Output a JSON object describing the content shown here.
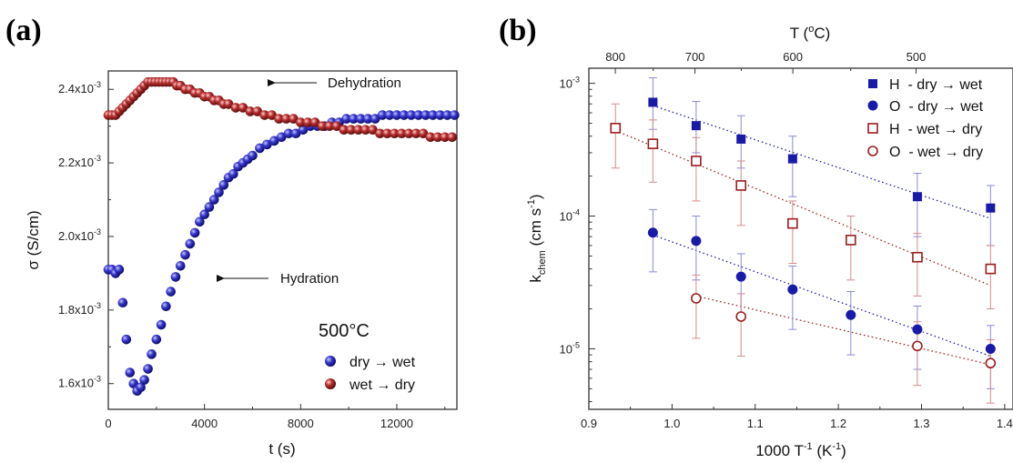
{
  "panel_labels": [
    "(a)",
    "(b)"
  ],
  "chart_data": [
    {
      "type": "scatter",
      "panel": "(a)",
      "xlabel": "t (s)",
      "ylabel": "σ (S/cm)",
      "xlim": [
        0,
        14500
      ],
      "ylim": [
        0.00153,
        0.00245
      ],
      "xticks": [
        "0",
        "4000",
        "8000",
        "12000"
      ],
      "yticks": [
        {
          "base": "1.6x10",
          "exp": "-3"
        },
        {
          "base": "1.8x10",
          "exp": "-3"
        },
        {
          "base": "2.0x10",
          "exp": "-3"
        },
        {
          "base": "2.2x10",
          "exp": "-3"
        },
        {
          "base": "2.4x10",
          "exp": "-3"
        }
      ],
      "legend_title": "500°C",
      "legend_position": "bottom-right",
      "annotations": [
        "Dehydration",
        "Hydration"
      ],
      "series": [
        {
          "name": "dry → wet",
          "color": "#1a1aa8",
          "x": [
            0,
            150,
            300,
            450,
            600,
            750,
            900,
            1050,
            1200,
            1350,
            1500,
            1650,
            1800,
            2000,
            2200,
            2400,
            2600,
            2800,
            3000,
            3200,
            3400,
            3600,
            3800,
            4000,
            4200,
            4400,
            4600,
            4800,
            5000,
            5200,
            5400,
            5600,
            5800,
            6000,
            6300,
            6600,
            6900,
            7200,
            7500,
            7800,
            8100,
            8400,
            8700,
            9000,
            9300,
            9600,
            9900,
            10200,
            10500,
            10800,
            11100,
            11400,
            11700,
            12000,
            12300,
            12600,
            12900,
            13200,
            13500,
            13800,
            14100,
            14400
          ],
          "y": [
            0.00191,
            0.00191,
            0.0019,
            0.00191,
            0.00182,
            0.00172,
            0.00163,
            0.0016,
            0.00158,
            0.00159,
            0.00161,
            0.00164,
            0.00168,
            0.00172,
            0.00176,
            0.00181,
            0.00185,
            0.00189,
            0.00192,
            0.00195,
            0.00198,
            0.00201,
            0.00204,
            0.00206,
            0.00208,
            0.0021,
            0.00212,
            0.00214,
            0.00216,
            0.00217,
            0.00219,
            0.0022,
            0.00221,
            0.00222,
            0.00224,
            0.00225,
            0.00226,
            0.00227,
            0.00228,
            0.00228,
            0.00229,
            0.0023,
            0.0023,
            0.0023,
            0.00231,
            0.00231,
            0.00232,
            0.00232,
            0.00232,
            0.00232,
            0.00232,
            0.00233,
            0.00233,
            0.00233,
            0.00233,
            0.00233,
            0.00233,
            0.00233,
            0.00233,
            0.00233,
            0.00233,
            0.00233
          ]
        },
        {
          "name": "wet → dry",
          "color": "#9b1c1c",
          "x": [
            0,
            150,
            300,
            450,
            600,
            750,
            900,
            1050,
            1200,
            1350,
            1500,
            1650,
            1800,
            1950,
            2100,
            2250,
            2400,
            2550,
            2700,
            2850,
            3000,
            3200,
            3400,
            3600,
            3800,
            4000,
            4200,
            4400,
            4600,
            4800,
            5000,
            5300,
            5600,
            5900,
            6200,
            6500,
            6800,
            7100,
            7400,
            7700,
            8000,
            8300,
            8600,
            8900,
            9200,
            9500,
            9800,
            10100,
            10400,
            10700,
            11000,
            11300,
            11600,
            11900,
            12200,
            12500,
            12800,
            13100,
            13400,
            13700,
            14000,
            14300
          ],
          "y": [
            0.00233,
            0.00233,
            0.00233,
            0.00234,
            0.00235,
            0.00236,
            0.00237,
            0.00238,
            0.00239,
            0.0024,
            0.00241,
            0.00242,
            0.00242,
            0.00242,
            0.00242,
            0.00242,
            0.00242,
            0.00242,
            0.00242,
            0.00241,
            0.00241,
            0.0024,
            0.0024,
            0.00239,
            0.00239,
            0.00238,
            0.00238,
            0.00237,
            0.00237,
            0.00236,
            0.00236,
            0.00235,
            0.00235,
            0.00234,
            0.00234,
            0.00233,
            0.00233,
            0.00232,
            0.00232,
            0.00232,
            0.00231,
            0.00231,
            0.00231,
            0.0023,
            0.0023,
            0.0023,
            0.00229,
            0.00229,
            0.00229,
            0.00229,
            0.00229,
            0.00228,
            0.00228,
            0.00228,
            0.00228,
            0.00228,
            0.00228,
            0.00228,
            0.00227,
            0.00227,
            0.00227,
            0.00227
          ]
        }
      ]
    },
    {
      "type": "scatter",
      "panel": "(b)",
      "xlabel": {
        "base": "1000 T",
        "sup": "-1",
        "unit": " (K",
        "unit_sup": "-1",
        "close": ")"
      },
      "ylabel": {
        "base": "k",
        "sub": "chem",
        "unit": " (cm s",
        "unit_sup": "-1",
        "close": ")"
      },
      "top_axis_label": {
        "base": "T (",
        "sup": "o",
        "rest": "C)"
      },
      "yscale": "log",
      "xlim": [
        0.9,
        1.41
      ],
      "ylim": [
        3.5e-06,
        0.0013
      ],
      "xticks": [
        "0.9",
        "1.0",
        "1.1",
        "1.2",
        "1.3",
        "1.4"
      ],
      "yticks": [
        {
          "base": "10",
          "exp": "-3"
        },
        {
          "base": "10",
          "exp": "-4"
        },
        {
          "base": "10",
          "exp": "-5"
        }
      ],
      "top_ticks": [
        "800",
        "700",
        "600",
        "500"
      ],
      "legend_position": "top-right",
      "series": [
        {
          "name": "H  - dry → wet",
          "marker": "filled-square",
          "color": "#1a1aa8",
          "x": [
            0.977,
            1.029,
            1.083,
            1.145,
            1.295,
            1.383
          ],
          "y": [
            0.00072,
            0.00048,
            0.00038,
            0.00027,
            0.00014,
            0.000115
          ],
          "yerr_low": [
            0.00045,
            0.0003,
            0.00023,
            0.00014,
            7e-05,
            6e-05
          ],
          "yerr_high": [
            0.0011,
            0.00073,
            0.00057,
            0.0004,
            0.00021,
            0.00017
          ]
        },
        {
          "name": "O  - dry → wet",
          "marker": "filled-circle",
          "color": "#1a1aa8",
          "x": [
            0.977,
            1.029,
            1.083,
            1.145,
            1.215,
            1.295,
            1.383
          ],
          "y": [
            7.5e-05,
            6.5e-05,
            3.5e-05,
            2.8e-05,
            1.8e-05,
            1.4e-05,
            1e-05
          ],
          "yerr_low": [
            3.8e-05,
            3.3e-05,
            1.8e-05,
            1.4e-05,
            9e-06,
            7e-06,
            5e-06
          ],
          "yerr_high": [
            0.000112,
            0.0001,
            5.2e-05,
            4.2e-05,
            2.7e-05,
            2.1e-05,
            1.5e-05
          ]
        },
        {
          "name": "H  - wet → dry",
          "marker": "open-square",
          "color": "#9b1c1c",
          "x": [
            0.932,
            0.977,
            1.029,
            1.083,
            1.145,
            1.215,
            1.295,
            1.383
          ],
          "y": [
            0.00046,
            0.00035,
            0.00026,
            0.00017,
            8.8e-05,
            6.6e-05,
            4.9e-05,
            4e-05
          ],
          "yerr_low": [
            0.00023,
            0.00018,
            0.00013,
            8.5e-05,
            4.4e-05,
            3.3e-05,
            2.5e-05,
            2e-05
          ],
          "yerr_high": [
            0.0007,
            0.00053,
            0.00039,
            0.00026,
            0.00013,
            0.0001,
            7.4e-05,
            6e-05
          ]
        },
        {
          "name": "O  - wet → dry",
          "marker": "open-circle",
          "color": "#9b1c1c",
          "x": [
            1.029,
            1.083,
            1.295,
            1.383
          ],
          "y": [
            2.4e-05,
            1.75e-05,
            1.05e-05,
            7.8e-06
          ],
          "yerr_low": [
            1.2e-05,
            8.8e-06,
            5.3e-06,
            3.9e-06
          ],
          "yerr_high": [
            3.6e-05,
            2.6e-05,
            1.6e-05,
            1.17e-05
          ]
        }
      ],
      "fits": [
        {
          "color": "#1a1aa8",
          "x": [
            0.977,
            1.383
          ],
          "y": [
            0.00068,
            9.6e-05
          ]
        },
        {
          "color": "#1a1aa8",
          "x": [
            0.977,
            1.383
          ],
          "y": [
            7.2e-05,
            8.8e-06
          ]
        },
        {
          "color": "#9b1c1c",
          "x": [
            0.932,
            1.383
          ],
          "y": [
            0.00044,
            3e-05
          ]
        },
        {
          "color": "#9b1c1c",
          "x": [
            1.029,
            1.383
          ],
          "y": [
            2.5e-05,
            7.6e-06
          ]
        }
      ]
    }
  ]
}
